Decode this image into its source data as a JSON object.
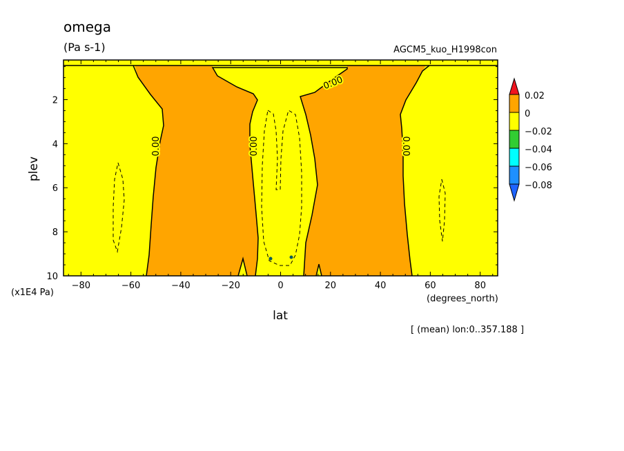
{
  "chart_data": {
    "type": "heatmap",
    "title": "omega",
    "units": "(Pa s-1)",
    "dataset": "AGCM5_kuo_H1998con",
    "xlabel": "lat",
    "x_units": "(degrees_north)",
    "ylabel": "plev",
    "y_units": "(x1E4 Pa)",
    "note": "[ (mean) lon:0..357.188 ]",
    "xlim": [
      -87,
      87
    ],
    "ylim": [
      10,
      0.2
    ],
    "x_ticks": [
      -80,
      -60,
      -40,
      -20,
      0,
      20,
      40,
      60,
      80
    ],
    "y_ticks": [
      2,
      4,
      6,
      8,
      10
    ],
    "contour_labels": [
      "0.00",
      "0.00",
      "0.00",
      "0.00"
    ],
    "colorbar": {
      "levels": [
        "0.02",
        "0",
        "−0.02",
        "−0.04",
        "−0.06",
        "−0.08"
      ],
      "colors": [
        "#f0141e",
        "#ffa500",
        "#ffff00",
        "#32cd32",
        "#00ffff",
        "#1e90ff",
        "#1e64ff"
      ]
    },
    "regions": [
      {
        "name": "north-high-latitude",
        "sign": "negative",
        "color": "#ffff00",
        "lat_range": [
          60,
          87
        ]
      },
      {
        "name": "south-high-latitude",
        "sign": "negative",
        "color": "#ffff00",
        "lat_range": [
          -87,
          -55
        ]
      },
      {
        "name": "south-subtropics",
        "sign": "positive",
        "color": "#ffa500",
        "lat_range": [
          -55,
          -10
        ]
      },
      {
        "name": "north-subtropics",
        "sign": "positive",
        "color": "#ffa500",
        "lat_range": [
          10,
          55
        ]
      },
      {
        "name": "tropics",
        "sign": "negative",
        "color": "#ffff00",
        "lat_range": [
          -12,
          12
        ]
      }
    ]
  }
}
